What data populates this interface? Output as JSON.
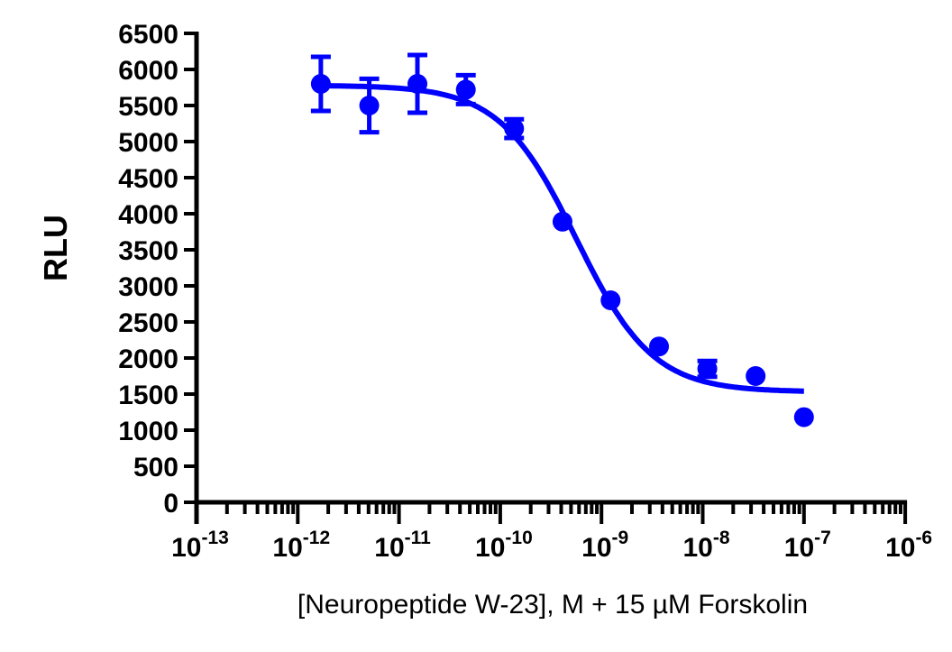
{
  "chart_data": {
    "type": "scatter",
    "title": "",
    "xlabel": "[Neuropeptide W-23], M + 15 µM Forskolin",
    "ylabel": "RLU",
    "xscale": "log",
    "xlim": [
      1e-13,
      1e-06
    ],
    "ylim": [
      0,
      6500
    ],
    "y_ticks": [
      0,
      500,
      1000,
      1500,
      2000,
      2500,
      3000,
      3500,
      4000,
      4500,
      5000,
      5500,
      6000,
      6500
    ],
    "x_ticks": [
      {
        "base": "10",
        "exp": "-13"
      },
      {
        "base": "10",
        "exp": "-12"
      },
      {
        "base": "10",
        "exp": "-11"
      },
      {
        "base": "10",
        "exp": "-10"
      },
      {
        "base": "10",
        "exp": "-9"
      },
      {
        "base": "10",
        "exp": "-8"
      },
      {
        "base": "10",
        "exp": "-7"
      },
      {
        "base": "10",
        "exp": "-6"
      }
    ],
    "grid": false,
    "color": "#0000ff",
    "points": [
      {
        "x": 1.69e-12,
        "y": 5800,
        "err": 375
      },
      {
        "x": 5.08e-12,
        "y": 5500,
        "err": 370
      },
      {
        "x": 1.52e-11,
        "y": 5800,
        "err": 400
      },
      {
        "x": 4.57e-11,
        "y": 5720,
        "err": 200
      },
      {
        "x": 1.37e-10,
        "y": 5180,
        "err": 130
      },
      {
        "x": 4.12e-10,
        "y": 3890,
        "err": 0
      },
      {
        "x": 1.23e-09,
        "y": 2800,
        "err": 0
      },
      {
        "x": 3.7e-09,
        "y": 2160,
        "err": 0
      },
      {
        "x": 1.11e-08,
        "y": 1850,
        "err": 110
      },
      {
        "x": 3.33e-08,
        "y": 1750,
        "err": 0
      },
      {
        "x": 1e-07,
        "y": 1180,
        "err": 0
      }
    ],
    "fit": {
      "model": "4PL",
      "top": 5780,
      "bottom": 1530,
      "logEC50": -9.25,
      "hill": 1.15,
      "x_range": [
        1.69e-12,
        1e-07
      ]
    }
  }
}
